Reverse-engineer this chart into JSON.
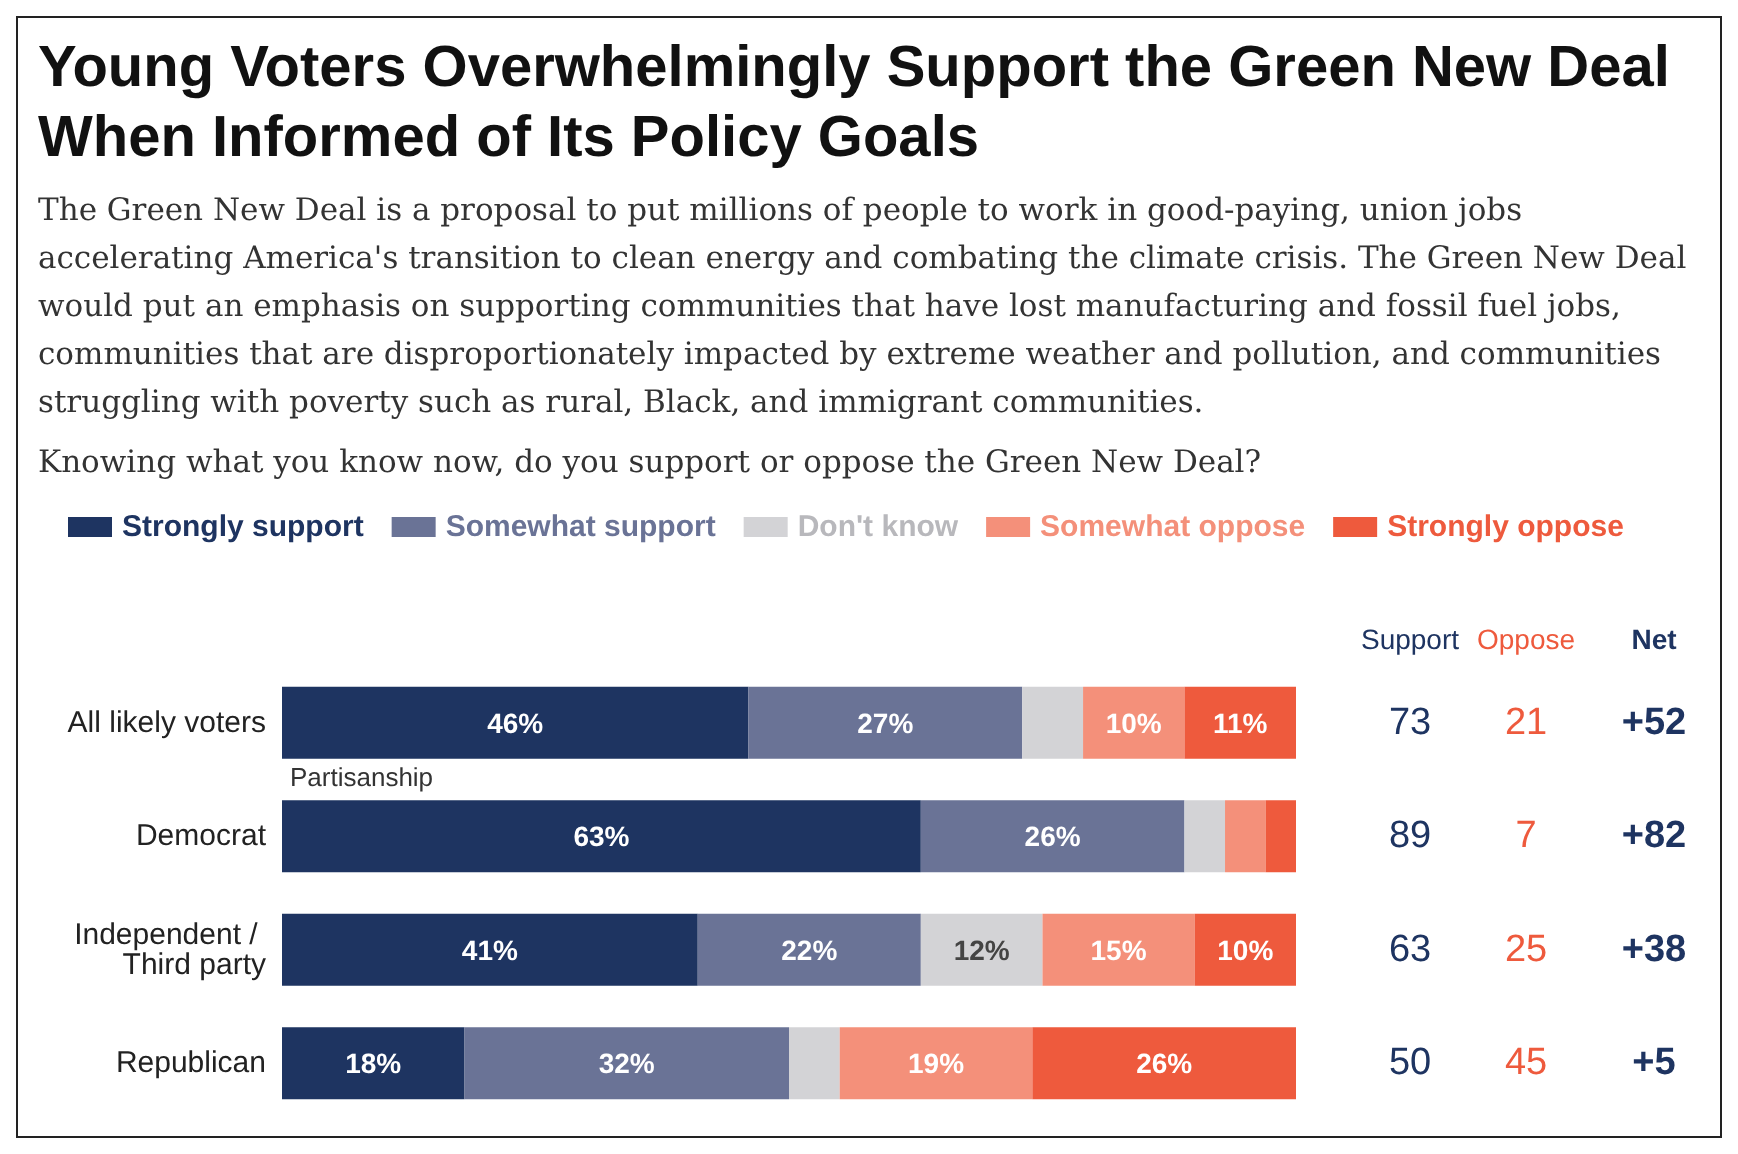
{
  "chart_data": {
    "type": "bar",
    "orientation": "horizontal",
    "stacked": true,
    "legend": "top",
    "title": "Young Voters Overwhelmingly Support the Green New Deal When Informed of Its Policy Goals",
    "subtitle": "The Green New Deal is a proposal to put millions of people to work in good-paying, union jobs accelerating America's transition to clean energy and combating the climate crisis. The Green New Deal would put an emphasis on supporting communities that have lost manufacturing and fossil fuel jobs, communities that are disproportionately impacted by extreme weather and pollution, and communities struggling with poverty such as rural, Black, and immigrant communities.",
    "categories": [
      "All likely voters",
      "Democrat",
      "Independent / Third party",
      "Republican"
    ],
    "series": [
      {
        "name": "Strongly support",
        "color": "#1e3461",
        "values": [
          46,
          63,
          41,
          18
        ],
        "value_labels": [
          "46%",
          "63%",
          "41%",
          "18%"
        ]
      },
      {
        "name": "Somewhat support",
        "color": "#6a7396",
        "values": [
          27,
          26,
          22,
          32
        ],
        "value_labels": [
          "27%",
          "26%",
          "22%",
          "32%"
        ]
      },
      {
        "name": "Don't know",
        "color": "#d3d3d6",
        "values": [
          6,
          4,
          12,
          5
        ],
        "value_labels": [
          null,
          null,
          "12%",
          null
        ]
      },
      {
        "name": "Somewhat oppose",
        "color": "#f4907a",
        "values": [
          10,
          4,
          15,
          19
        ],
        "value_labels": [
          "10%",
          null,
          "15%",
          "19%"
        ]
      },
      {
        "name": "Strongly oppose",
        "color": "#ee5a3d",
        "values": [
          11,
          3,
          10,
          26
        ],
        "value_labels": [
          "11%",
          null,
          "10%",
          "26%"
        ]
      }
    ],
    "annotations": [
      "Knowing what you know now, do you support or oppose the Green New Deal?",
      "Partisanship",
      "Support",
      "Oppose",
      "Net",
      "73",
      "21",
      "+52",
      "89",
      "7",
      "+82",
      "63",
      "25",
      "+38",
      "50",
      "45",
      "+5"
    ]
  }
}
